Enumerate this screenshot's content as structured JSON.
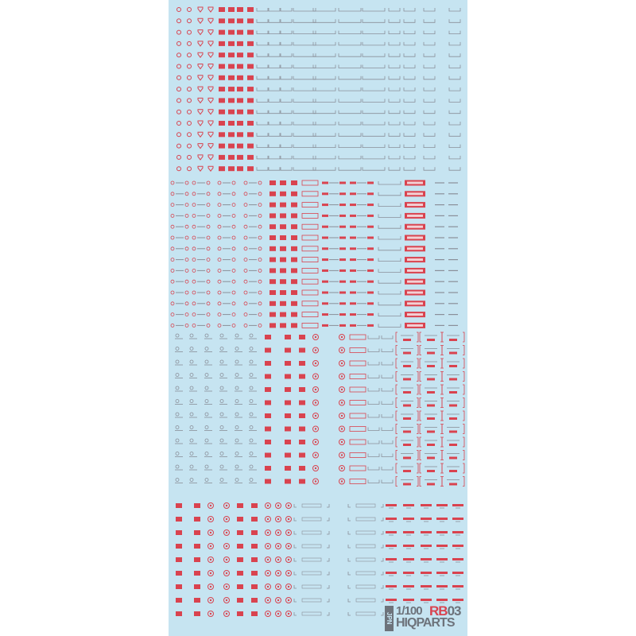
{
  "sheet": {
    "background": "#c6e4f1",
    "accent_red": "#d9434f",
    "marking_gray": "#8a8f99"
  },
  "logo": {
    "country": "JPN",
    "scale": "1/100",
    "code_prefix": "RB",
    "code_number": "03",
    "brand": "HIQPARTS"
  }
}
